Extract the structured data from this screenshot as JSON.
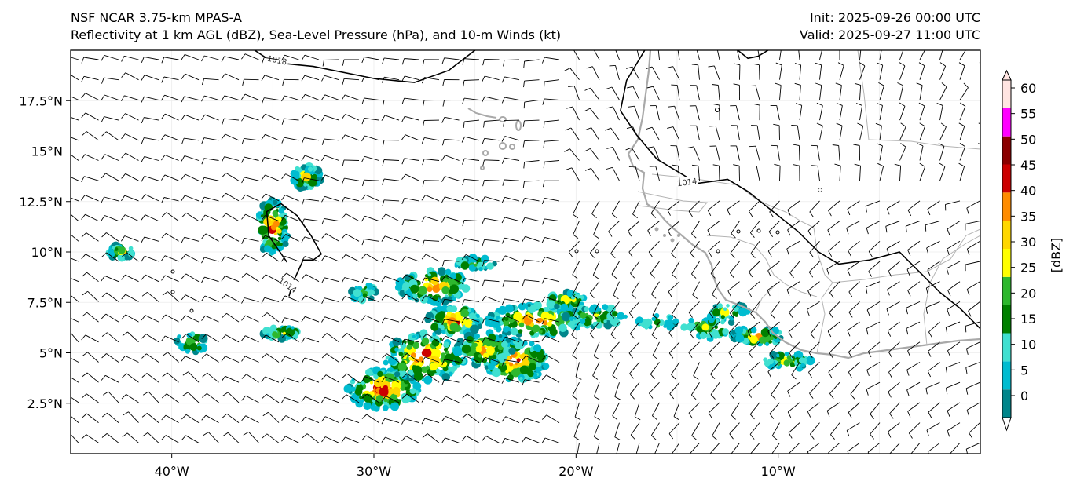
{
  "header": {
    "title_line1": "NSF NCAR 3.75-km MPAS-A",
    "title_line2": "Reflectivity at 1 km AGL (dBZ), Sea-Level Pressure (hPa), and 10-m Winds (kt)",
    "init": "Init: 2025-09-26 00:00 UTC",
    "valid": "Valid: 2025-09-27 11:00 UTC"
  },
  "map": {
    "lon_range": [
      -45,
      0
    ],
    "lat_range": [
      0,
      20
    ],
    "lon_ticks": [
      {
        "lon": -40,
        "label": "40°W"
      },
      {
        "lon": -30,
        "label": "30°W"
      },
      {
        "lon": -20,
        "label": "20°W"
      },
      {
        "lon": -10,
        "label": "10°W"
      }
    ],
    "lat_ticks": [
      {
        "lat": 2.5,
        "label": "2.5°N"
      },
      {
        "lat": 5,
        "label": "5°N"
      },
      {
        "lat": 7.5,
        "label": "7.5°N"
      },
      {
        "lat": 10,
        "label": "10°N"
      },
      {
        "lat": 12.5,
        "label": "12.5°N"
      },
      {
        "lat": 15,
        "label": "15°N"
      },
      {
        "lat": 17.5,
        "label": "17.5°N"
      }
    ],
    "isobars": [
      {
        "value": "1018",
        "points": [
          [
            -35.9,
            20
          ],
          [
            -35,
            19.4
          ],
          [
            -33,
            19.2
          ],
          [
            -30,
            18.6
          ],
          [
            -28,
            18.4
          ],
          [
            -26.3,
            19
          ],
          [
            -25,
            20
          ]
        ]
      },
      {
        "value": "1014",
        "points": [
          [
            -16.6,
            20
          ],
          [
            -17.5,
            18.5
          ],
          [
            -17.8,
            17
          ],
          [
            -17,
            15.8
          ],
          [
            -16,
            14.6
          ],
          [
            -14,
            13.4
          ],
          [
            -12.5,
            13.6
          ],
          [
            -11.5,
            13
          ],
          [
            -10.5,
            12.2
          ],
          [
            -9,
            11
          ],
          [
            -8,
            10
          ],
          [
            -7,
            9.4
          ],
          [
            -5.5,
            9.6
          ],
          [
            -4,
            10
          ],
          [
            -3,
            9
          ],
          [
            -2,
            8
          ],
          [
            -1,
            7.2
          ],
          [
            0,
            6.2
          ]
        ]
      },
      {
        "value": "1014",
        "points": [
          [
            -34.3,
            9.5
          ],
          [
            -35.2,
            10.8
          ],
          [
            -35.3,
            12
          ],
          [
            -34.6,
            12.4
          ],
          [
            -33.8,
            11.8
          ],
          [
            -33.1,
            10.8
          ],
          [
            -32.6,
            9.9
          ],
          [
            -33,
            9.6
          ],
          [
            -33.5,
            9.6
          ],
          [
            -34,
            8.5
          ],
          [
            -34.2,
            7.8
          ]
        ]
      },
      {
        "value": "",
        "points": [
          [
            -12,
            20
          ],
          [
            -11.5,
            19.6
          ],
          [
            -11,
            19.7
          ],
          [
            -10.5,
            20
          ]
        ]
      }
    ],
    "colors": {
      "isobar": "#000000",
      "coastline": "#a9a9a9",
      "border": "#b4b4b4",
      "barb": "#000000"
    }
  },
  "colorbar": {
    "label": "[dBZ]",
    "tick_labels": [
      "0",
      "5",
      "10",
      "15",
      "20",
      "25",
      "30",
      "35",
      "40",
      "45",
      "50",
      "55",
      "60"
    ],
    "colors": [
      "#ffffff",
      "#00868b",
      "#00bcd0",
      "#40e0d0",
      "#008000",
      "#2eb82e",
      "#ffff00",
      "#ffd700",
      "#ff8c00",
      "#cc0000",
      "#8b0000",
      "#ff00ff",
      "#ffe4e1"
    ]
  }
}
